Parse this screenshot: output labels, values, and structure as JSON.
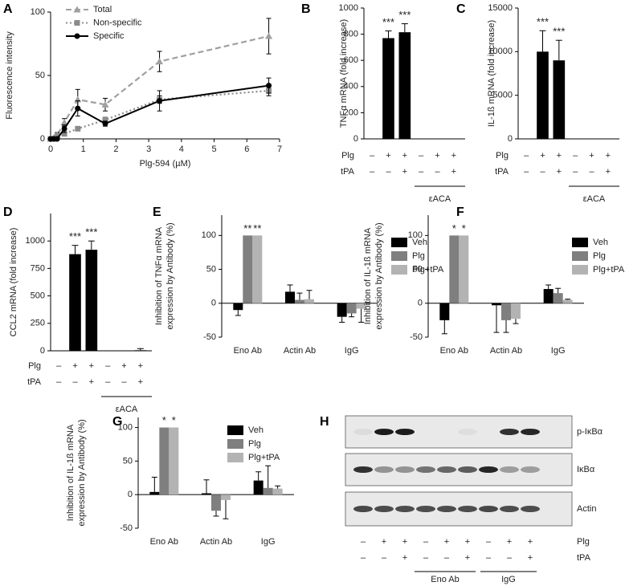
{
  "chart_data": [
    {
      "type": "line",
      "panel": "A",
      "xlabel": "Plg-594 (µM)",
      "ylabel": "Fluorescence intensity",
      "xlim": [
        0,
        7
      ],
      "xticks": [
        0,
        1,
        2,
        3,
        4,
        5,
        6,
        7
      ],
      "ylim": [
        0,
        100
      ],
      "yticks": [
        0,
        50,
        100
      ],
      "x": [
        0,
        0.1,
        0.2,
        0.42,
        0.83,
        1.67,
        3.33,
        6.67
      ],
      "series": [
        {
          "name": "Total",
          "color": "#a0a0a0",
          "marker": "triangle",
          "line_style": "dashed",
          "values": [
            0,
            1,
            3,
            13,
            31,
            27,
            61,
            81
          ],
          "errors": [
            1,
            1,
            2,
            3,
            8,
            5,
            8,
            14
          ]
        },
        {
          "name": "Non-specific",
          "color": "#8c8c8c",
          "marker": "square",
          "line_style": "dotted",
          "values": [
            0,
            0,
            2,
            4,
            8,
            15,
            31,
            38
          ],
          "errors": [
            0,
            0,
            1,
            1,
            1,
            2,
            3,
            4
          ]
        },
        {
          "name": "Specific",
          "color": "#000000",
          "marker": "circle",
          "line_style": "solid",
          "values": [
            0,
            0,
            0,
            8,
            24,
            12,
            30,
            42
          ],
          "errors": [
            0,
            0,
            1,
            3,
            6,
            2,
            8,
            6
          ]
        }
      ]
    },
    {
      "type": "bar",
      "panel": "B",
      "ylabel": "TNFα mRNA (fold increase)",
      "color": "#000000",
      "ylim": [
        0,
        1000
      ],
      "yticks": [
        0,
        200,
        400,
        600,
        800,
        1000
      ],
      "values": [
        0,
        770,
        815,
        0,
        0,
        0
      ],
      "errors": [
        0,
        55,
        65,
        0,
        0,
        0
      ],
      "significance": [
        null,
        "***",
        "***",
        null,
        null,
        null
      ],
      "condition_rows": [
        {
          "label": "Plg",
          "values": [
            "–",
            "+",
            "+",
            "–",
            "+",
            "+"
          ]
        },
        {
          "label": "tPA",
          "values": [
            "–",
            "–",
            "+",
            "–",
            "–",
            "+"
          ]
        }
      ],
      "group_label": "εACA"
    },
    {
      "type": "bar",
      "panel": "C",
      "ylabel": "IL-1ß mRNA (fold increase)",
      "color": "#000000",
      "ylim": [
        0,
        15000
      ],
      "yticks": [
        0,
        5000,
        10000,
        15000
      ],
      "values": [
        0,
        10000,
        9000,
        0,
        0,
        0
      ],
      "errors": [
        0,
        2400,
        2300,
        0,
        0,
        0
      ],
      "significance": [
        null,
        "***",
        "***",
        null,
        null,
        null
      ],
      "condition_rows": [
        {
          "label": "Plg",
          "values": [
            "–",
            "+",
            "+",
            "–",
            "+",
            "+"
          ]
        },
        {
          "label": "tPA",
          "values": [
            "–",
            "–",
            "+",
            "–",
            "–",
            "+"
          ]
        }
      ],
      "group_label": "εACA"
    },
    {
      "type": "bar",
      "panel": "D",
      "ylabel": "CCL2 mRNA (fold increase)",
      "color": "#000000",
      "ylim": [
        0,
        1250
      ],
      "yticks": [
        0,
        250,
        500,
        750,
        1000
      ],
      "values": [
        0,
        880,
        920,
        0,
        0,
        5
      ],
      "errors": [
        0,
        80,
        80,
        0,
        0,
        15
      ],
      "significance": [
        null,
        "***",
        "***",
        null,
        null,
        null
      ],
      "condition_rows": [
        {
          "label": "Plg",
          "values": [
            "–",
            "+",
            "+",
            "–",
            "+",
            "+"
          ]
        },
        {
          "label": "tPA",
          "values": [
            "–",
            "–",
            "+",
            "–",
            "–",
            "+"
          ]
        }
      ],
      "group_label": "εACA"
    },
    {
      "type": "grouped_bar",
      "panel": "E",
      "ylabel": [
        "Inhibition of TNFα mRNA",
        "expression by Antibody (%)"
      ],
      "ylim": [
        -50,
        130
      ],
      "yticks": [
        -50,
        0,
        50,
        100
      ],
      "categories": [
        "Eno Ab",
        "Actin Ab",
        "IgG"
      ],
      "series": [
        {
          "name": "Veh",
          "color": "#000000",
          "values": [
            -10,
            17,
            -20
          ],
          "errors": [
            8,
            10,
            8
          ],
          "significance": [
            null,
            null,
            null
          ]
        },
        {
          "name": "Plg",
          "color": "#7f7f7f",
          "values": [
            100,
            5,
            -15
          ],
          "errors": [
            0,
            10,
            5
          ],
          "significance": [
            "**",
            null,
            null
          ]
        },
        {
          "name": "Plg+tPA",
          "color": "#b3b3b3",
          "values": [
            100,
            6,
            -8
          ],
          "errors": [
            0,
            13,
            20
          ],
          "significance": [
            "**",
            null,
            null
          ]
        }
      ]
    },
    {
      "type": "grouped_bar",
      "panel": "F",
      "ylabel": [
        "Inhibition of IL-1ß mRNA",
        "expression by Antibody (%)"
      ],
      "ylim": [
        -50,
        130
      ],
      "yticks": [
        -50,
        0,
        50,
        100
      ],
      "categories": [
        "Eno Ab",
        "Actin Ab",
        "IgG"
      ],
      "series": [
        {
          "name": "Veh",
          "color": "#000000",
          "values": [
            -25,
            -3,
            21
          ],
          "errors": [
            20,
            40,
            6
          ],
          "significance": [
            null,
            null,
            null
          ]
        },
        {
          "name": "Plg",
          "color": "#7f7f7f",
          "values": [
            100,
            -25,
            15
          ],
          "errors": [
            0,
            18,
            7
          ],
          "significance": [
            "*",
            null,
            null
          ]
        },
        {
          "name": "Plg+tPA",
          "color": "#b3b3b3",
          "values": [
            100,
            -23,
            5
          ],
          "errors": [
            0,
            7,
            1
          ],
          "significance": [
            "*",
            null,
            null
          ]
        }
      ]
    },
    {
      "type": "grouped_bar",
      "panel": "G",
      "ylabel": [
        "Inhibition of IL-1ß mRNA",
        "expression by Antibody (%)"
      ],
      "ylim": [
        -50,
        115
      ],
      "yticks": [
        -50,
        0,
        50,
        100
      ],
      "categories": [
        "Eno Ab",
        "Actin Ab",
        "IgG"
      ],
      "series": [
        {
          "name": "Veh",
          "color": "#000000",
          "values": [
            4,
            2,
            21
          ],
          "errors": [
            22,
            20,
            13
          ],
          "significance": [
            null,
            null,
            null
          ]
        },
        {
          "name": "Plg",
          "color": "#7f7f7f",
          "values": [
            100,
            -24,
            10
          ],
          "errors": [
            0,
            8,
            33
          ],
          "significance": [
            "*",
            null,
            null
          ]
        },
        {
          "name": "Plg+tPA",
          "color": "#b3b3b3",
          "values": [
            100,
            -8,
            9
          ],
          "errors": [
            0,
            28,
            4
          ],
          "significance": [
            "*",
            null,
            null
          ]
        }
      ]
    }
  ],
  "blot": {
    "panel": "H",
    "rows": [
      "p-IκBα",
      "IκBα",
      "Actin"
    ],
    "condition_rows": [
      {
        "label": "Plg",
        "values": [
          "–",
          "+",
          "+",
          "–",
          "+",
          "+",
          "–",
          "+",
          "+"
        ]
      },
      {
        "label": "tPA",
        "values": [
          "–",
          "–",
          "+",
          "–",
          "–",
          "+",
          "–",
          "–",
          "+"
        ]
      }
    ],
    "groups": [
      "Eno Ab",
      "IgG"
    ]
  }
}
